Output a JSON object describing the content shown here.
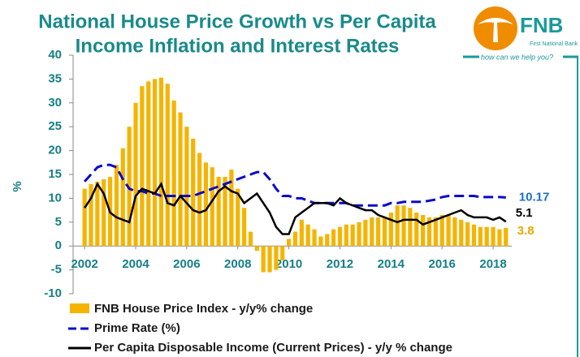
{
  "chart_data": {
    "type": "combo",
    "title": [
      "National House Price Growth vs Per Capita",
      "Income Inflation and Interest Rates"
    ],
    "logo": {
      "name": "FNB",
      "subtitle": "First National Bank",
      "tagline": "how can we help you?"
    },
    "y_label": "%",
    "xlim": [
      2001.55,
      2018.73
    ],
    "xticks": [
      2002,
      2004,
      2006,
      2008,
      2010,
      2012,
      2014,
      2016,
      2018
    ],
    "ylim": [
      -10,
      40
    ],
    "yticks": [
      -10,
      -5,
      0,
      5,
      10,
      15,
      20,
      25,
      30,
      35,
      40
    ],
    "x": [
      2002,
      2002.25,
      2002.5,
      2002.75,
      2003,
      2003.25,
      2003.5,
      2003.75,
      2004,
      2004.25,
      2004.5,
      2004.75,
      2005,
      2005.25,
      2005.5,
      2005.75,
      2006,
      2006.25,
      2006.5,
      2006.75,
      2007,
      2007.25,
      2007.5,
      2007.75,
      2008,
      2008.25,
      2008.5,
      2008.75,
      2009,
      2009.25,
      2009.5,
      2009.75,
      2010,
      2010.25,
      2010.5,
      2010.75,
      2011,
      2011.25,
      2011.5,
      2011.75,
      2012,
      2012.25,
      2012.5,
      2012.75,
      2013,
      2013.25,
      2013.5,
      2013.75,
      2014,
      2014.25,
      2014.5,
      2014.75,
      2015,
      2015.25,
      2015.5,
      2015.75,
      2016,
      2016.25,
      2016.5,
      2016.75,
      2017,
      2017.25,
      2017.5,
      2017.75,
      2018,
      2018.25,
      2018.5
    ],
    "series": [
      {
        "name": "FNB House Price Index - y/y% change",
        "type": "bar",
        "color": "#f5b400",
        "values": [
          12,
          13,
          13.5,
          14,
          14.5,
          17,
          20.5,
          25,
          30,
          33.5,
          34.5,
          35,
          35.3,
          34,
          30.5,
          28,
          25,
          22.5,
          19.5,
          17.5,
          16.5,
          14.5,
          14.5,
          16,
          12,
          8,
          3,
          -1,
          -5.5,
          -5.5,
          -5,
          -3,
          1.5,
          3,
          5.5,
          4.5,
          3.5,
          2,
          2.5,
          3.5,
          4,
          4.5,
          4.5,
          5,
          5.5,
          6,
          6,
          6,
          7,
          8.5,
          8.5,
          8,
          7,
          6.5,
          6,
          6,
          6.5,
          6.5,
          6,
          5.5,
          5,
          4.5,
          4,
          4,
          4,
          3.5,
          3.8
        ]
      },
      {
        "name": "Prime Rate (%)",
        "type": "line",
        "style": "dashed",
        "color": "#0a0acc",
        "values": [
          13.5,
          15,
          16.5,
          17,
          17,
          16.5,
          14,
          12,
          11.5,
          11.5,
          11,
          11,
          10.5,
          10.5,
          10.5,
          10.5,
          10.5,
          10.5,
          11,
          11.5,
          12,
          12.5,
          13,
          13.5,
          14,
          14.5,
          15,
          15.5,
          15.5,
          14,
          12,
          10.5,
          10.5,
          10,
          10,
          9.5,
          9,
          9,
          9,
          9,
          9,
          9,
          8.5,
          8.5,
          8.5,
          8.5,
          8.5,
          8.5,
          9,
          9,
          9.25,
          9.25,
          9.25,
          9.25,
          9.5,
          9.75,
          10.25,
          10.5,
          10.5,
          10.5,
          10.5,
          10.5,
          10.25,
          10.25,
          10.25,
          10.25,
          10.17
        ]
      },
      {
        "name": "Per Capita Disposable Income (Current Prices) - y/y % change",
        "type": "line",
        "style": "solid",
        "color": "#000000",
        "values": [
          8,
          10,
          13,
          11,
          7,
          6,
          5.5,
          5,
          10.5,
          12,
          11.5,
          11,
          13,
          9,
          8.5,
          10.5,
          9,
          7.5,
          7,
          7.5,
          9.5,
          11.5,
          12.5,
          11.5,
          11,
          9,
          10,
          11,
          9,
          7,
          4,
          2.5,
          2.5,
          6,
          7,
          8,
          9,
          9,
          9,
          8.5,
          10,
          9,
          8.5,
          8,
          7.5,
          7.5,
          6.5,
          6,
          5.5,
          5,
          5.5,
          5.5,
          5.5,
          4.5,
          5,
          5.5,
          6,
          6.5,
          7,
          7.5,
          6.5,
          6,
          6,
          6,
          5.5,
          6,
          5.1
        ]
      }
    ],
    "end_label_colors": [
      "#e8a800",
      "#1f6fbf",
      "#000000"
    ]
  }
}
